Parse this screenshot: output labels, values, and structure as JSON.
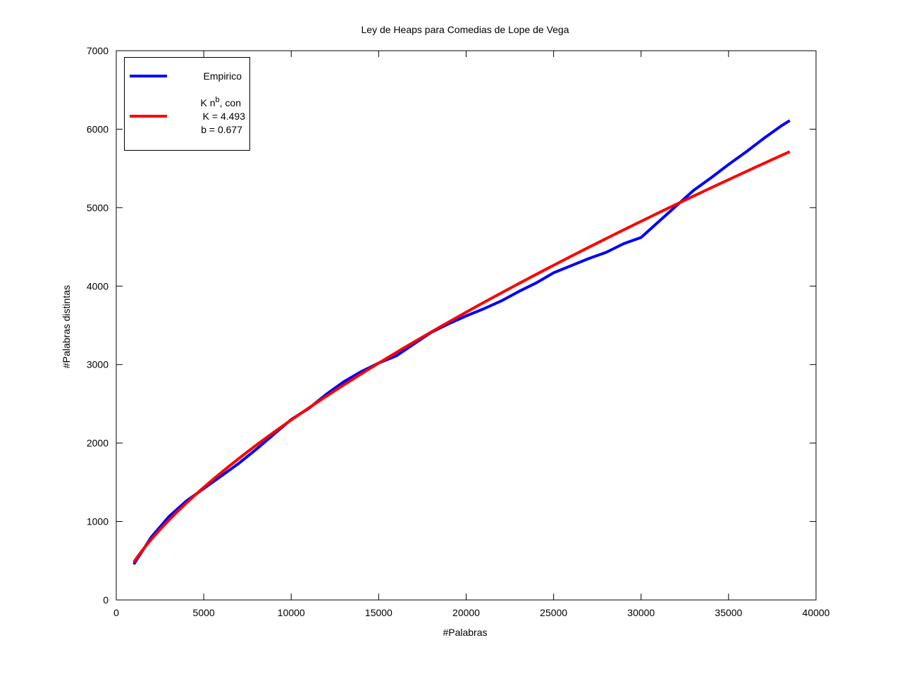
{
  "chart_data": {
    "type": "line",
    "title": "Ley de Heaps para Comedias de Lope de Vega",
    "xlabel": "#Palabras",
    "ylabel": "#Palabras distintas",
    "xlim": [
      0,
      40000
    ],
    "ylim": [
      0,
      7000
    ],
    "xticks": [
      0,
      5000,
      10000,
      15000,
      20000,
      25000,
      30000,
      35000,
      40000
    ],
    "yticks": [
      0,
      1000,
      2000,
      3000,
      4000,
      5000,
      6000,
      7000
    ],
    "grid": false,
    "legend_position": "top-left",
    "series": [
      {
        "name": "Empirico",
        "color": "#0000ff",
        "x": [
          1000,
          2000,
          3000,
          4000,
          5000,
          6000,
          7000,
          8000,
          9000,
          10000,
          11000,
          12000,
          13000,
          14000,
          15000,
          16000,
          17000,
          18000,
          19000,
          20000,
          21000,
          22000,
          23000,
          24000,
          25000,
          26000,
          27000,
          28000,
          29000,
          30000,
          31000,
          32000,
          33000,
          34000,
          35000,
          36000,
          37000,
          38000,
          38500
        ],
        "y": [
          455,
          800,
          1060,
          1260,
          1420,
          1580,
          1740,
          1920,
          2110,
          2300,
          2440,
          2620,
          2780,
          2910,
          3020,
          3110,
          3260,
          3410,
          3520,
          3620,
          3710,
          3810,
          3930,
          4040,
          4170,
          4260,
          4350,
          4430,
          4540,
          4620,
          4820,
          5020,
          5220,
          5380,
          5550,
          5710,
          5880,
          6040,
          6110
        ]
      },
      {
        "name": "K n^b fit",
        "color": "#ff0000",
        "K": 4.493,
        "b": 0.677,
        "x_range": [
          1000,
          38500
        ]
      }
    ],
    "legend": {
      "empirico": "Empirico",
      "fit_line1_main": "K n",
      "fit_line1_sup": "b",
      "fit_line1_tail": ", con",
      "fit_line2": "K = 4.493",
      "fit_line3": "b = 0.677"
    }
  }
}
